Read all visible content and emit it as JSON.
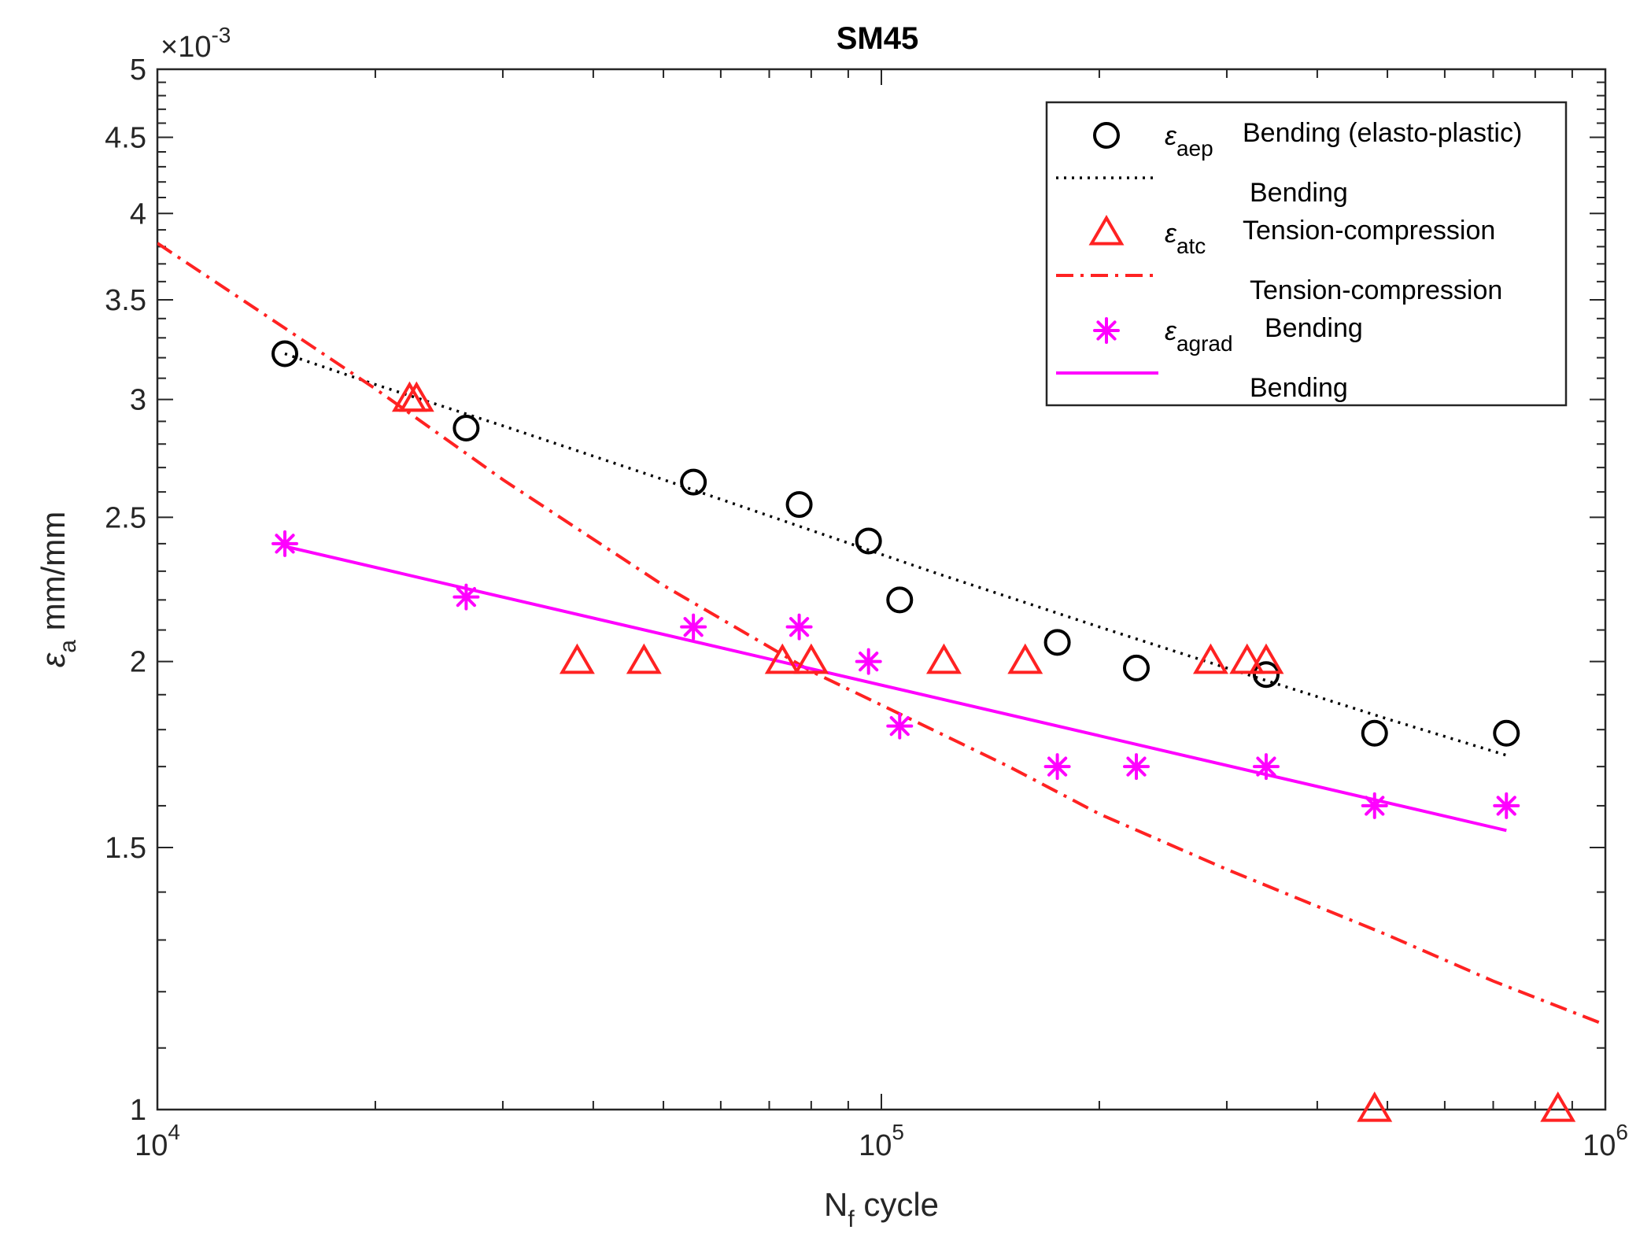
{
  "chart_data": {
    "type": "scatter",
    "title": "SM45",
    "xscale": "log",
    "yscale": "log",
    "xlim": [
      10000,
      1000000
    ],
    "ylim": [
      1,
      5
    ],
    "y_exponent_label": "×10",
    "y_exponent_power": "-3",
    "xlabel": {
      "main": "N",
      "sub": "f",
      "rest": " cycle"
    },
    "ylabel": {
      "sym": "ε",
      "sub": "a",
      "rest": " mm/mm"
    },
    "xticks": [
      {
        "value": 10000,
        "base": "10",
        "exp": "4"
      },
      {
        "value": 100000,
        "base": "10",
        "exp": "5"
      },
      {
        "value": 1000000,
        "base": "10",
        "exp": "6"
      }
    ],
    "yticks": [
      {
        "value": 1,
        "label": "1"
      },
      {
        "value": 1.5,
        "label": "1.5"
      },
      {
        "value": 2,
        "label": "2"
      },
      {
        "value": 2.5,
        "label": "2.5"
      },
      {
        "value": 3,
        "label": "3"
      },
      {
        "value": 3.5,
        "label": "3.5"
      },
      {
        "value": 4,
        "label": "4"
      },
      {
        "value": 4.5,
        "label": "4.5"
      },
      {
        "value": 5,
        "label": "5"
      }
    ],
    "series": [
      {
        "name": "Bending (elasto-plastic)",
        "symbol": "ε",
        "subscript": "aep",
        "kind": "marker",
        "marker": "circle",
        "color": "#000000",
        "points": [
          [
            15000,
            3.22
          ],
          [
            26700,
            2.87
          ],
          [
            55000,
            2.64
          ],
          [
            77000,
            2.55
          ],
          [
            96000,
            2.41
          ],
          [
            106000,
            2.2
          ],
          [
            175000,
            2.06
          ],
          [
            225000,
            1.98
          ],
          [
            340000,
            1.96
          ],
          [
            480000,
            1.79
          ],
          [
            730000,
            1.79
          ]
        ]
      },
      {
        "name": "Bending",
        "kind": "line",
        "style": "dotted",
        "color": "#000000",
        "points": [
          [
            15000,
            3.22
          ],
          [
            20000,
            3.07
          ],
          [
            30000,
            2.88
          ],
          [
            50000,
            2.65
          ],
          [
            80000,
            2.45
          ],
          [
            120000,
            2.29
          ],
          [
            200000,
            2.11
          ],
          [
            300000,
            1.98
          ],
          [
            500000,
            1.83
          ],
          [
            730000,
            1.73
          ]
        ]
      },
      {
        "name": "Tension-compression",
        "symbol": "ε",
        "subscript": "atc",
        "kind": "marker",
        "marker": "triangle",
        "color": "#ff2222",
        "points": [
          [
            22300,
            3.0
          ],
          [
            22800,
            3.0
          ],
          [
            38000,
            2.0
          ],
          [
            47000,
            2.0
          ],
          [
            73000,
            2.0
          ],
          [
            80000,
            2.0
          ],
          [
            122000,
            2.0
          ],
          [
            158000,
            2.0
          ],
          [
            285000,
            2.0
          ],
          [
            320000,
            2.0
          ],
          [
            340000,
            2.0
          ],
          [
            480000,
            1.0
          ],
          [
            860000,
            1.0
          ]
        ]
      },
      {
        "name": "Tension-compression",
        "kind": "line",
        "style": "dashdot",
        "color": "#ff2222",
        "points": [
          [
            10000,
            3.82
          ],
          [
            15000,
            3.35
          ],
          [
            20000,
            3.05
          ],
          [
            30000,
            2.65
          ],
          [
            50000,
            2.25
          ],
          [
            80000,
            1.97
          ],
          [
            100000,
            1.87
          ],
          [
            150000,
            1.7
          ],
          [
            200000,
            1.58
          ],
          [
            300000,
            1.45
          ],
          [
            500000,
            1.31
          ],
          [
            700000,
            1.22
          ],
          [
            1000000,
            1.14
          ]
        ]
      },
      {
        "name": "Bending",
        "symbol": "ε",
        "subscript": "agrad",
        "kind": "marker",
        "marker": "asterisk",
        "color": "#ff00ff",
        "points": [
          [
            15000,
            2.4
          ],
          [
            26700,
            2.21
          ],
          [
            55000,
            2.11
          ],
          [
            77000,
            2.11
          ],
          [
            96000,
            2.0
          ],
          [
            106000,
            1.81
          ],
          [
            175000,
            1.7
          ],
          [
            225000,
            1.7
          ],
          [
            340000,
            1.7
          ],
          [
            480000,
            1.6
          ],
          [
            730000,
            1.6
          ]
        ]
      },
      {
        "name": "Bending",
        "kind": "line",
        "style": "solid",
        "color": "#ff00ff",
        "points": [
          [
            15000,
            2.39
          ],
          [
            730000,
            1.54
          ]
        ]
      }
    ],
    "legend_position": "top-right"
  }
}
